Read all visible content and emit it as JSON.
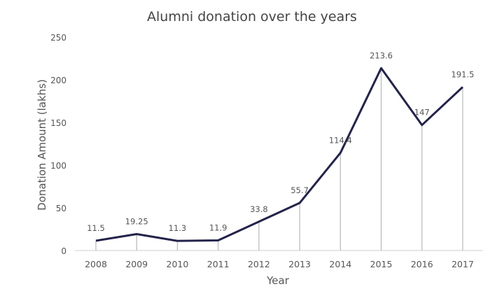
{
  "chart_data": {
    "type": "line",
    "title": "Alumni donation over the years",
    "xlabel": "Year",
    "ylabel": "Donation Amount (lakhs)",
    "categories": [
      "2008",
      "2009",
      "2010",
      "2011",
      "2012",
      "2013",
      "2014",
      "2015",
      "2016",
      "2017"
    ],
    "values": [
      11.5,
      19.25,
      11.3,
      11.9,
      33.8,
      55.7,
      114.4,
      213.6,
      147,
      191.5
    ],
    "data_labels": [
      "11.5",
      "19.25",
      "11.3",
      "11.9",
      "33.8",
      "55.7",
      "114.4",
      "213.6",
      "147",
      "191.5"
    ],
    "ylim": [
      0,
      250
    ],
    "yticks": [
      "0",
      "50",
      "100",
      "150",
      "200",
      "250"
    ],
    "grid": false,
    "drop_lines": true,
    "colors": {
      "line": "#23234a",
      "drop_line": "#bdbdbd",
      "text": "#555555"
    }
  }
}
